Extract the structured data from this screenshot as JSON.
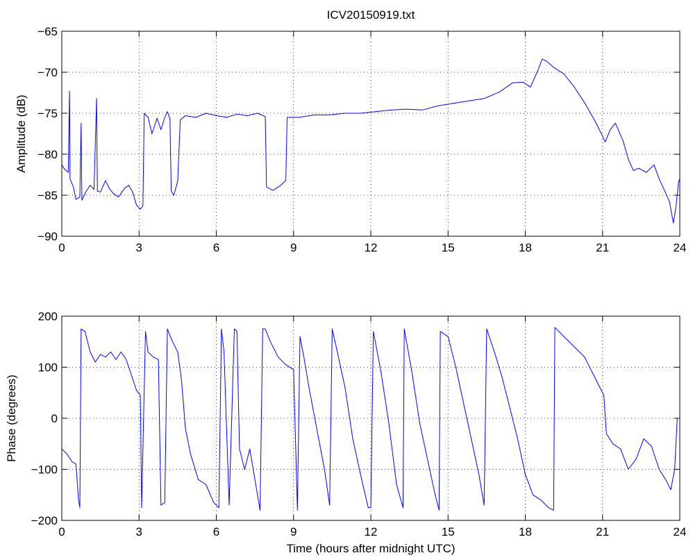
{
  "figure": {
    "title": "ICV20150919.txt"
  },
  "colors": {
    "series": "#0000ff",
    "axes": "#000000",
    "background": "#ffffff"
  },
  "chart_data": [
    {
      "type": "line",
      "title": "ICV20150919.txt",
      "xlabel": "",
      "ylabel": "Amplitude (dB)",
      "xlim": [
        0,
        24
      ],
      "ylim": [
        -90,
        -65
      ],
      "xticks": [
        0,
        3,
        6,
        9,
        12,
        15,
        18,
        21,
        24
      ],
      "xtick_labels": [
        "0",
        "3",
        "6",
        "9",
        "12",
        "15",
        "18",
        "21",
        "24"
      ],
      "yticks": [
        -90,
        -85,
        -80,
        -75,
        -70,
        -65
      ],
      "ytick_labels": [
        "−90",
        "−85",
        "−80",
        "−75",
        "−70",
        "−65"
      ],
      "grid": true,
      "series": [
        {
          "color": "#0000ff",
          "points": [
            [
              0.0,
              -81.3
            ],
            [
              0.1,
              -81.8
            ],
            [
              0.25,
              -82.2
            ],
            [
              0.3,
              -72.3
            ],
            [
              0.32,
              -83.0
            ],
            [
              0.45,
              -84.0
            ],
            [
              0.55,
              -85.5
            ],
            [
              0.7,
              -85.2
            ],
            [
              0.75,
              -76.2
            ],
            [
              0.78,
              -85.6
            ],
            [
              0.95,
              -84.5
            ],
            [
              1.1,
              -83.8
            ],
            [
              1.25,
              -84.3
            ],
            [
              1.35,
              -73.2
            ],
            [
              1.38,
              -84.5
            ],
            [
              1.5,
              -84.6
            ],
            [
              1.7,
              -83.2
            ],
            [
              1.85,
              -84.2
            ],
            [
              2.0,
              -84.8
            ],
            [
              2.2,
              -85.2
            ],
            [
              2.45,
              -84.1
            ],
            [
              2.6,
              -83.8
            ],
            [
              2.75,
              -84.6
            ],
            [
              2.9,
              -86.2
            ],
            [
              3.05,
              -86.7
            ],
            [
              3.15,
              -86.3
            ],
            [
              3.2,
              -75.0
            ],
            [
              3.35,
              -75.5
            ],
            [
              3.5,
              -77.5
            ],
            [
              3.7,
              -75.6
            ],
            [
              3.85,
              -77.0
            ],
            [
              4.0,
              -75.5
            ],
            [
              4.1,
              -74.8
            ],
            [
              4.2,
              -75.7
            ],
            [
              4.25,
              -84.5
            ],
            [
              4.35,
              -85.0
            ],
            [
              4.5,
              -83.3
            ],
            [
              4.6,
              -75.8
            ],
            [
              4.8,
              -75.3
            ],
            [
              5.2,
              -75.5
            ],
            [
              5.6,
              -75.0
            ],
            [
              6.0,
              -75.3
            ],
            [
              6.4,
              -75.5
            ],
            [
              6.8,
              -75.1
            ],
            [
              7.2,
              -75.3
            ],
            [
              7.6,
              -75.0
            ],
            [
              7.9,
              -75.4
            ],
            [
              7.95,
              -84.0
            ],
            [
              8.2,
              -84.4
            ],
            [
              8.5,
              -83.8
            ],
            [
              8.7,
              -83.2
            ],
            [
              8.75,
              -75.5
            ],
            [
              9.2,
              -75.5
            ],
            [
              9.8,
              -75.2
            ],
            [
              10.4,
              -75.2
            ],
            [
              11.0,
              -75.0
            ],
            [
              11.6,
              -75.0
            ],
            [
              12.2,
              -74.8
            ],
            [
              12.8,
              -74.6
            ],
            [
              13.4,
              -74.5
            ],
            [
              14.0,
              -74.6
            ],
            [
              14.6,
              -74.1
            ],
            [
              15.2,
              -73.8
            ],
            [
              15.8,
              -73.5
            ],
            [
              16.4,
              -73.2
            ],
            [
              17.0,
              -72.4
            ],
            [
              17.5,
              -71.3
            ],
            [
              17.9,
              -71.2
            ],
            [
              18.2,
              -71.8
            ],
            [
              18.5,
              -69.7
            ],
            [
              18.65,
              -68.4
            ],
            [
              18.8,
              -68.6
            ],
            [
              19.1,
              -69.4
            ],
            [
              19.5,
              -70.2
            ],
            [
              19.9,
              -71.8
            ],
            [
              20.3,
              -73.7
            ],
            [
              20.7,
              -75.9
            ],
            [
              21.0,
              -77.8
            ],
            [
              21.1,
              -78.5
            ],
            [
              21.3,
              -77.0
            ],
            [
              21.5,
              -76.2
            ],
            [
              21.8,
              -78.4
            ],
            [
              22.0,
              -80.6
            ],
            [
              22.2,
              -82.0
            ],
            [
              22.4,
              -81.7
            ],
            [
              22.7,
              -82.2
            ],
            [
              23.0,
              -81.3
            ],
            [
              23.2,
              -83.0
            ],
            [
              23.4,
              -84.4
            ],
            [
              23.6,
              -85.8
            ],
            [
              23.75,
              -88.4
            ],
            [
              23.85,
              -86.5
            ],
            [
              23.95,
              -83.4
            ],
            [
              24.0,
              -83.0
            ]
          ]
        }
      ]
    },
    {
      "type": "line",
      "title": "",
      "xlabel": "Time (hours after midnight UTC)",
      "ylabel": "Phase (degrees)",
      "xlim": [
        0,
        24
      ],
      "ylim": [
        -200,
        200
      ],
      "xticks": [
        0,
        3,
        6,
        9,
        12,
        15,
        18,
        21,
        24
      ],
      "xtick_labels": [
        "0",
        "3",
        "6",
        "9",
        "12",
        "15",
        "18",
        "21",
        "24"
      ],
      "yticks": [
        -200,
        -100,
        0,
        100,
        200
      ],
      "ytick_labels": [
        "−200",
        "−100",
        "0",
        "100",
        "200"
      ],
      "grid": true,
      "series": [
        {
          "color": "#0000ff",
          "points": [
            [
              0.0,
              -60
            ],
            [
              0.2,
              -70
            ],
            [
              0.4,
              -85
            ],
            [
              0.55,
              -90
            ],
            [
              0.65,
              -160
            ],
            [
              0.7,
              -175
            ],
            [
              0.75,
              175
            ],
            [
              0.9,
              170
            ],
            [
              1.0,
              150
            ],
            [
              1.1,
              130
            ],
            [
              1.3,
              110
            ],
            [
              1.5,
              125
            ],
            [
              1.7,
              120
            ],
            [
              1.9,
              130
            ],
            [
              2.1,
              115
            ],
            [
              2.3,
              130
            ],
            [
              2.5,
              115
            ],
            [
              2.7,
              85
            ],
            [
              2.9,
              55
            ],
            [
              3.05,
              45
            ],
            [
              3.1,
              -175
            ],
            [
              3.25,
              170
            ],
            [
              3.35,
              130
            ],
            [
              3.55,
              120
            ],
            [
              3.75,
              115
            ],
            [
              3.85,
              -170
            ],
            [
              4.0,
              -165
            ],
            [
              4.1,
              175
            ],
            [
              4.3,
              150
            ],
            [
              4.5,
              130
            ],
            [
              4.65,
              75
            ],
            [
              4.8,
              -20
            ],
            [
              5.0,
              -70
            ],
            [
              5.3,
              -120
            ],
            [
              5.6,
              -130
            ],
            [
              5.9,
              -165
            ],
            [
              6.1,
              -175
            ],
            [
              6.2,
              175
            ],
            [
              6.3,
              130
            ],
            [
              6.5,
              -170
            ],
            [
              6.7,
              175
            ],
            [
              6.8,
              170
            ],
            [
              6.9,
              -60
            ],
            [
              7.1,
              -100
            ],
            [
              7.3,
              -60
            ],
            [
              7.5,
              -120
            ],
            [
              7.7,
              -180
            ],
            [
              7.8,
              175
            ],
            [
              7.9,
              175
            ],
            [
              8.1,
              150
            ],
            [
              8.4,
              120
            ],
            [
              8.7,
              105
            ],
            [
              9.0,
              95
            ],
            [
              9.15,
              -180
            ],
            [
              9.25,
              160
            ],
            [
              9.4,
              120
            ],
            [
              9.6,
              60
            ],
            [
              9.9,
              -20
            ],
            [
              10.2,
              -100
            ],
            [
              10.4,
              -170
            ],
            [
              10.5,
              175
            ],
            [
              10.7,
              130
            ],
            [
              11.0,
              60
            ],
            [
              11.3,
              -40
            ],
            [
              11.6,
              -110
            ],
            [
              11.9,
              -175
            ],
            [
              12.0,
              -175
            ],
            [
              12.1,
              170
            ],
            [
              12.4,
              90
            ],
            [
              12.7,
              -10
            ],
            [
              13.0,
              -130
            ],
            [
              13.25,
              -175
            ],
            [
              13.3,
              175
            ],
            [
              13.6,
              90
            ],
            [
              13.9,
              -10
            ],
            [
              14.2,
              -80
            ],
            [
              14.5,
              -150
            ],
            [
              14.65,
              -180
            ],
            [
              14.7,
              170
            ],
            [
              15.0,
              160
            ],
            [
              15.3,
              100
            ],
            [
              15.6,
              30
            ],
            [
              15.9,
              -40
            ],
            [
              16.2,
              -110
            ],
            [
              16.4,
              -170
            ],
            [
              16.5,
              175
            ],
            [
              16.8,
              130
            ],
            [
              17.1,
              80
            ],
            [
              17.4,
              20
            ],
            [
              17.7,
              -40
            ],
            [
              18.0,
              -110
            ],
            [
              18.3,
              -150
            ],
            [
              18.6,
              -160
            ],
            [
              18.9,
              -175
            ],
            [
              19.1,
              -180
            ],
            [
              19.15,
              178
            ],
            [
              19.5,
              160
            ],
            [
              19.9,
              140
            ],
            [
              20.3,
              120
            ],
            [
              20.6,
              90
            ],
            [
              20.9,
              60
            ],
            [
              21.05,
              45
            ],
            [
              21.15,
              -30
            ],
            [
              21.4,
              -50
            ],
            [
              21.7,
              -60
            ],
            [
              22.0,
              -100
            ],
            [
              22.3,
              -80
            ],
            [
              22.6,
              -40
            ],
            [
              22.9,
              -55
            ],
            [
              23.2,
              -100
            ],
            [
              23.45,
              -120
            ],
            [
              23.65,
              -140
            ],
            [
              23.8,
              -100
            ],
            [
              23.9,
              0
            ],
            [
              24.0,
              0
            ]
          ]
        }
      ]
    }
  ]
}
